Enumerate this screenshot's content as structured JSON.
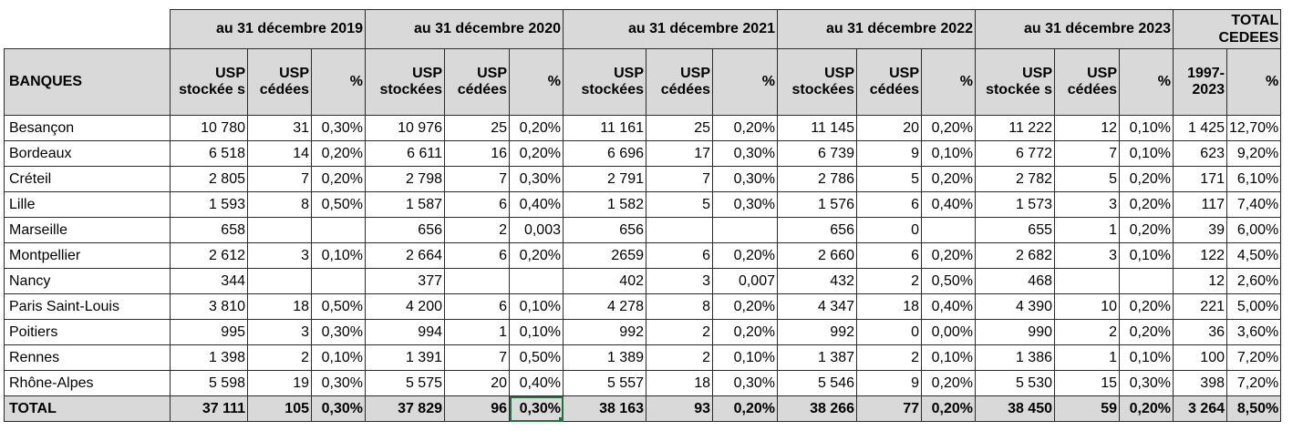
{
  "years": [
    "au 31 décembre 2019",
    "au 31 décembre 2020",
    "au 31 décembre 2021",
    "au 31 décembre 2022",
    "au 31 décembre 2023"
  ],
  "total_header": "TOTAL CEDEES",
  "banks_label": "BANQUES",
  "sub": {
    "stocked_a": "USP stockée s",
    "stocked_b": "USP stockées",
    "ceded": "USP cédées",
    "pct": "%",
    "period": "1997-2023"
  },
  "rows": [
    {
      "name": "Besançon",
      "c": [
        "10 780",
        "31",
        "0,30%",
        "10 976",
        "25",
        "0,20%",
        "11 161",
        "25",
        "0,20%",
        "11 145",
        "20",
        "0,20%",
        "11 222",
        "12",
        "0,10%",
        "1 425",
        "12,70%"
      ]
    },
    {
      "name": "Bordeaux",
      "c": [
        "6 518",
        "14",
        "0,20%",
        "6 611",
        "16",
        "0,20%",
        "6 696",
        "17",
        "0,30%",
        "6 739",
        "9",
        "0,10%",
        "6 772",
        "7",
        "0,10%",
        "623",
        "9,20%"
      ]
    },
    {
      "name": "Créteil",
      "c": [
        "2 805",
        "7",
        "0,20%",
        "2 798",
        "7",
        "0,30%",
        "2 791",
        "7",
        "0,30%",
        "2 786",
        "5",
        "0,20%",
        "2 782",
        "5",
        "0,20%",
        "171",
        "6,10%"
      ]
    },
    {
      "name": "Lille",
      "c": [
        "1 593",
        "8",
        "0,50%",
        "1 587",
        "6",
        "0,40%",
        "1 582",
        "5",
        "0,30%",
        "1 576",
        "6",
        "0,40%",
        "1 573",
        "3",
        "0,20%",
        "117",
        "7,40%"
      ]
    },
    {
      "name": "Marseille",
      "c": [
        "658",
        "",
        "",
        "656",
        "2",
        "0,003",
        "656",
        "",
        "",
        "656",
        "0",
        "",
        "655",
        "1",
        "0,20%",
        "39",
        "6,00%"
      ]
    },
    {
      "name": "Montpellier",
      "c": [
        "2 612",
        "3",
        "0,10%",
        "2 664",
        "6",
        "0,20%",
        "2659",
        "6",
        "0,20%",
        "2 660",
        "6",
        "0,20%",
        "2 682",
        "3",
        "0,10%",
        "122",
        "4,50%"
      ]
    },
    {
      "name": "Nancy",
      "c": [
        "344",
        "",
        "",
        "377",
        "",
        "",
        "402",
        "3",
        "0,007",
        "432",
        "2",
        "0,50%",
        "468",
        "",
        "",
        "12",
        "2,60%"
      ]
    },
    {
      "name": "Paris Saint-Louis",
      "c": [
        "3 810",
        "18",
        "0,50%",
        "4 200",
        "6",
        "0,10%",
        "4 278",
        "8",
        "0,20%",
        "4 347",
        "18",
        "0,40%",
        "4 390",
        "10",
        "0,20%",
        "221",
        "5,00%"
      ]
    },
    {
      "name": "Poitiers",
      "c": [
        "995",
        "3",
        "0,30%",
        "994",
        "1",
        "0,10%",
        "992",
        "2",
        "0,20%",
        "992",
        "0",
        "0,00%",
        "990",
        "2",
        "0,20%",
        "36",
        "3,60%"
      ]
    },
    {
      "name": "Rennes",
      "c": [
        "1 398",
        "2",
        "0,10%",
        "1 391",
        "7",
        "0,50%",
        "1 389",
        "2",
        "0,10%",
        "1 387",
        "2",
        "0,10%",
        "1 386",
        "1",
        "0,10%",
        "100",
        "7,20%"
      ]
    },
    {
      "name": "Rhône-Alpes",
      "c": [
        "5 598",
        "19",
        "0,30%",
        "5 575",
        "20",
        "0,40%",
        "5 557",
        "18",
        "0,30%",
        "5 546",
        "9",
        "0,20%",
        "5 530",
        "15",
        "0,30%",
        "398",
        "7,20%"
      ]
    }
  ],
  "total": {
    "name": "TOTAL",
    "c": [
      "37 111",
      "105",
      "0,30%",
      "37 829",
      "96",
      "0,30%",
      "38 163",
      "93",
      "0,20%",
      "38 266",
      "77",
      "0,20%",
      "38 450",
      "59",
      "0,20%",
      "3 264",
      "8,50%"
    ]
  }
}
